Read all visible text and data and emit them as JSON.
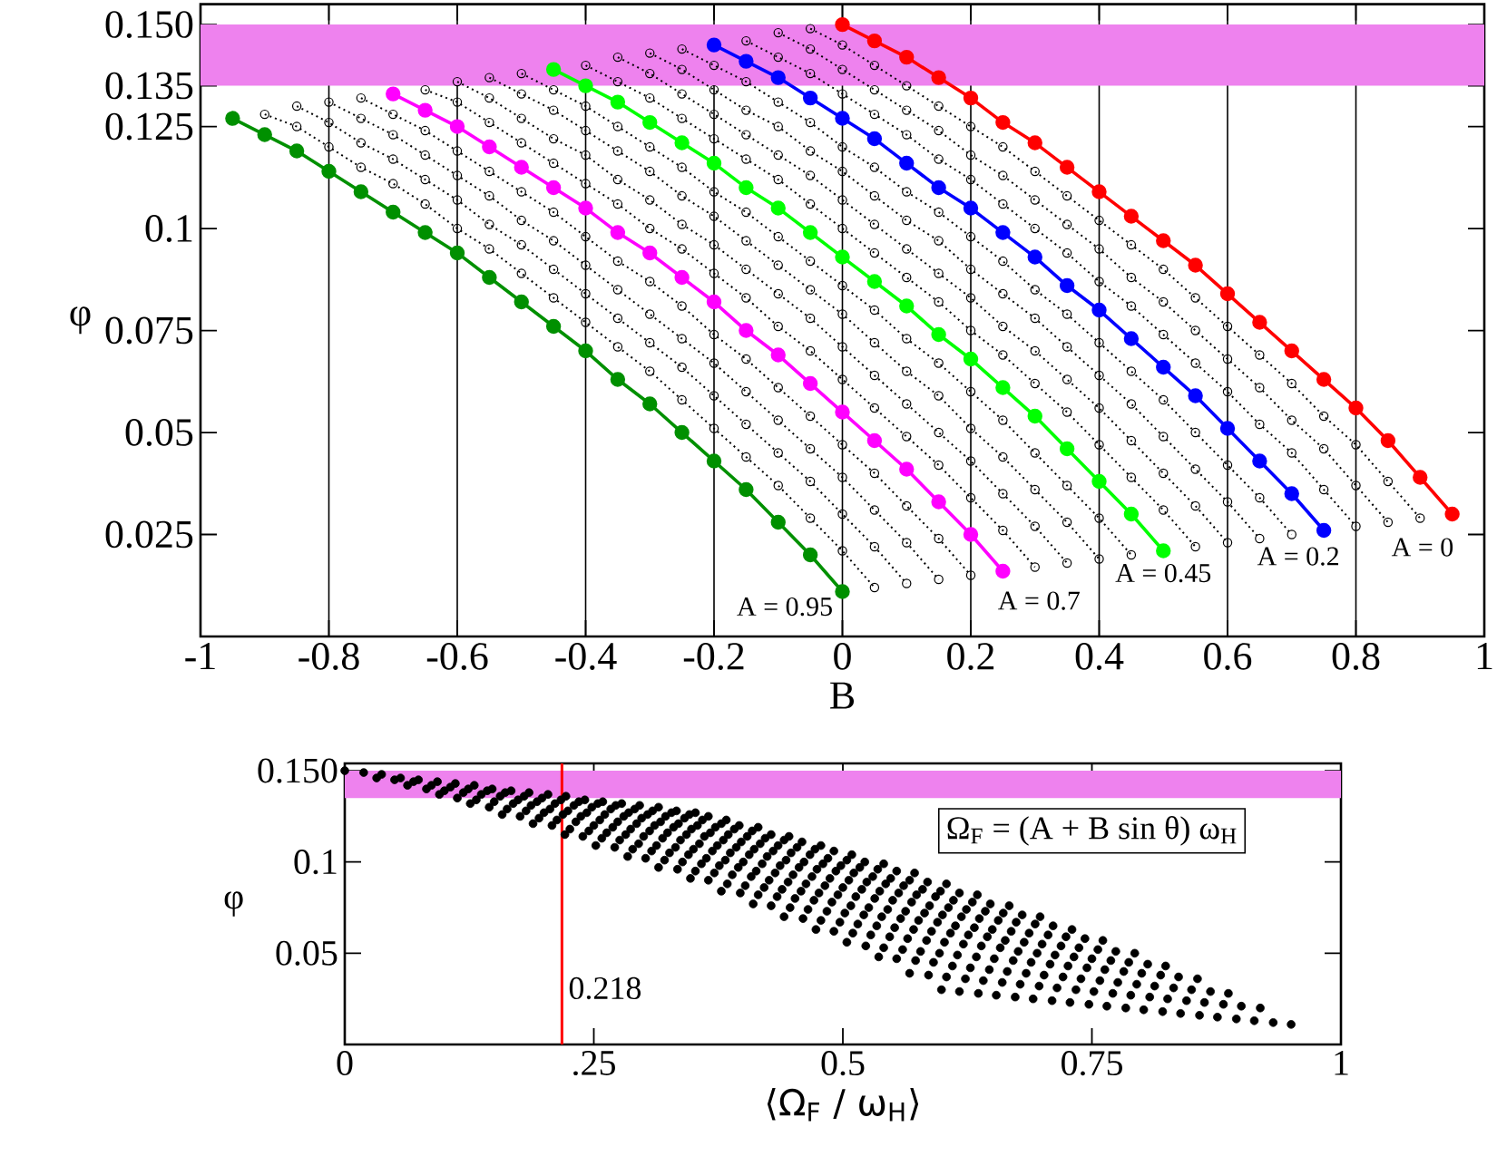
{
  "chart_data": [
    {
      "type": "line",
      "xlabel": "B",
      "ylabel": "φ",
      "xlim": [
        -1,
        1
      ],
      "ylim": [
        0,
        0.155
      ],
      "xticks": [
        -1,
        -0.8,
        -0.6,
        -0.4,
        -0.2,
        0,
        0.2,
        0.4,
        0.6,
        0.8,
        1
      ],
      "yticks": [
        0.025,
        0.05,
        0.075,
        0.1,
        0.125,
        0.135,
        {
          "value": 0.15,
          "label": "0.150"
        }
      ],
      "grid": "x",
      "marker": "circle",
      "bands": [
        {
          "axis": "y",
          "from": 0.135,
          "to": 0.15,
          "color": "#ee82ee"
        }
      ],
      "annotations": [
        {
          "text": "A = 0.95",
          "x": 0,
          "y": 0.011
        },
        {
          "text": "A = 0.7",
          "x": 0.25,
          "y": 0.016
        },
        {
          "text": "A = 0.45",
          "x": 0.5,
          "y": 0.021
        },
        {
          "text": "A = 0.2",
          "x": 0.75,
          "y": 0.026
        },
        {
          "text": "A = 0",
          "x": 0.95,
          "y": 0.03
        }
      ],
      "series": [
        {
          "color": "#ff0000",
          "line_style": "solid",
          "x": [
            0,
            0.05,
            0.1,
            0.15,
            0.2,
            0.25,
            0.3,
            0.35,
            0.4,
            0.45,
            0.5,
            0.55,
            0.6,
            0.65,
            0.7,
            0.75,
            0.8,
            0.85,
            0.9,
            0.95
          ],
          "values": [
            0.15,
            0.146,
            0.142,
            0.137,
            0.132,
            0.126,
            0.121,
            0.115,
            0.109,
            0.103,
            0.097,
            0.091,
            0.084,
            0.077,
            0.07,
            0.063,
            0.056,
            0.048,
            0.039,
            0.03
          ]
        },
        {
          "color": "#000000",
          "line_style": "dotted",
          "x": [
            -0.05,
            0,
            0.05,
            0.1,
            0.15,
            0.2,
            0.25,
            0.3,
            0.35,
            0.4,
            0.45,
            0.5,
            0.55,
            0.6,
            0.65,
            0.7,
            0.75,
            0.8,
            0.85,
            0.9
          ],
          "values": [
            0.149,
            0.145,
            0.14,
            0.135,
            0.13,
            0.125,
            0.12,
            0.114,
            0.108,
            0.102,
            0.096,
            0.09,
            0.083,
            0.076,
            0.069,
            0.062,
            0.054,
            0.047,
            0.038,
            0.029
          ]
        },
        {
          "color": "#000000",
          "line_style": "dotted",
          "x": [
            -0.1,
            -0.05,
            0,
            0.05,
            0.1,
            0.15,
            0.2,
            0.25,
            0.3,
            0.35,
            0.4,
            0.45,
            0.5,
            0.55,
            0.6,
            0.65,
            0.7,
            0.75,
            0.8,
            0.85
          ],
          "values": [
            0.148,
            0.144,
            0.139,
            0.134,
            0.129,
            0.124,
            0.118,
            0.113,
            0.107,
            0.101,
            0.095,
            0.088,
            0.082,
            0.075,
            0.068,
            0.061,
            0.053,
            0.046,
            0.037,
            0.028
          ]
        },
        {
          "color": "#000000",
          "line_style": "dotted",
          "x": [
            -0.15,
            -0.1,
            -0.05,
            0,
            0.05,
            0.1,
            0.15,
            0.2,
            0.25,
            0.3,
            0.35,
            0.4,
            0.45,
            0.5,
            0.55,
            0.6,
            0.65,
            0.7,
            0.75,
            0.8
          ],
          "values": [
            0.146,
            0.142,
            0.138,
            0.133,
            0.128,
            0.123,
            0.117,
            0.112,
            0.106,
            0.1,
            0.094,
            0.087,
            0.081,
            0.074,
            0.067,
            0.06,
            0.052,
            0.045,
            0.036,
            0.027
          ]
        },
        {
          "color": "#0000ff",
          "line_style": "solid",
          "x": [
            -0.2,
            -0.15,
            -0.1,
            -0.05,
            0,
            0.05,
            0.1,
            0.15,
            0.2,
            0.25,
            0.3,
            0.35,
            0.4,
            0.45,
            0.5,
            0.55,
            0.6,
            0.65,
            0.7,
            0.75
          ],
          "values": [
            0.145,
            0.141,
            0.137,
            0.132,
            0.127,
            0.122,
            0.116,
            0.11,
            0.105,
            0.099,
            0.093,
            0.086,
            0.08,
            0.073,
            0.066,
            0.059,
            0.051,
            0.043,
            0.035,
            0.026
          ]
        },
        {
          "color": "#000000",
          "line_style": "dotted",
          "x": [
            -0.25,
            -0.2,
            -0.15,
            -0.1,
            -0.05,
            0,
            0.05,
            0.1,
            0.15,
            0.2,
            0.25,
            0.3,
            0.35,
            0.4,
            0.45,
            0.5,
            0.55,
            0.6,
            0.65,
            0.7
          ],
          "values": [
            0.144,
            0.14,
            0.136,
            0.131,
            0.126,
            0.12,
            0.115,
            0.109,
            0.104,
            0.098,
            0.092,
            0.085,
            0.079,
            0.072,
            0.065,
            0.058,
            0.05,
            0.042,
            0.034,
            0.025
          ]
        },
        {
          "color": "#000000",
          "line_style": "dotted",
          "x": [
            -0.3,
            -0.25,
            -0.2,
            -0.15,
            -0.1,
            -0.05,
            0,
            0.05,
            0.1,
            0.15,
            0.2,
            0.25,
            0.3,
            0.35,
            0.4,
            0.45,
            0.5,
            0.55,
            0.6,
            0.65
          ],
          "values": [
            0.143,
            0.139,
            0.134,
            0.129,
            0.125,
            0.119,
            0.114,
            0.108,
            0.102,
            0.097,
            0.09,
            0.084,
            0.078,
            0.071,
            0.064,
            0.057,
            0.049,
            0.041,
            0.033,
            0.024
          ]
        },
        {
          "color": "#000000",
          "line_style": "dotted",
          "x": [
            -0.35,
            -0.3,
            -0.25,
            -0.2,
            -0.15,
            -0.1,
            -0.05,
            0,
            0.05,
            0.1,
            0.15,
            0.2,
            0.25,
            0.3,
            0.35,
            0.4,
            0.45,
            0.5,
            0.55,
            0.6
          ],
          "values": [
            0.142,
            0.138,
            0.133,
            0.128,
            0.123,
            0.118,
            0.113,
            0.107,
            0.101,
            0.095,
            0.089,
            0.083,
            0.076,
            0.07,
            0.063,
            0.056,
            0.048,
            0.04,
            0.032,
            0.023
          ]
        },
        {
          "color": "#000000",
          "line_style": "dotted",
          "x": [
            -0.4,
            -0.35,
            -0.3,
            -0.25,
            -0.2,
            -0.15,
            -0.1,
            -0.05,
            0,
            0.05,
            0.1,
            0.15,
            0.2,
            0.25,
            0.3,
            0.35,
            0.4,
            0.45,
            0.5,
            0.55
          ],
          "values": [
            0.14,
            0.136,
            0.132,
            0.127,
            0.122,
            0.117,
            0.112,
            0.106,
            0.1,
            0.094,
            0.088,
            0.082,
            0.075,
            0.069,
            0.062,
            0.055,
            0.047,
            0.039,
            0.031,
            0.022
          ]
        },
        {
          "color": "#00ff00",
          "line_style": "solid",
          "x": [
            -0.45,
            -0.4,
            -0.35,
            -0.3,
            -0.25,
            -0.2,
            -0.15,
            -0.1,
            -0.05,
            0,
            0.05,
            0.1,
            0.15,
            0.2,
            0.25,
            0.3,
            0.35,
            0.4,
            0.45,
            0.5
          ],
          "values": [
            0.139,
            0.135,
            0.131,
            0.126,
            0.121,
            0.116,
            0.11,
            0.105,
            0.099,
            0.093,
            0.087,
            0.081,
            0.074,
            0.068,
            0.061,
            0.054,
            0.046,
            0.038,
            0.03,
            0.021
          ]
        },
        {
          "color": "#000000",
          "line_style": "dotted",
          "x": [
            -0.5,
            -0.45,
            -0.4,
            -0.35,
            -0.3,
            -0.25,
            -0.2,
            -0.15,
            -0.1,
            -0.05,
            0,
            0.05,
            0.1,
            0.15,
            0.2,
            0.25,
            0.3,
            0.35,
            0.4,
            0.45
          ],
          "values": [
            0.138,
            0.134,
            0.13,
            0.125,
            0.12,
            0.115,
            0.109,
            0.104,
            0.098,
            0.092,
            0.086,
            0.08,
            0.073,
            0.067,
            0.06,
            0.053,
            0.045,
            0.037,
            0.029,
            0.02
          ]
        },
        {
          "color": "#000000",
          "line_style": "dotted",
          "x": [
            -0.55,
            -0.5,
            -0.45,
            -0.4,
            -0.35,
            -0.3,
            -0.25,
            -0.2,
            -0.15,
            -0.1,
            -0.05,
            0,
            0.05,
            0.1,
            0.15,
            0.2,
            0.25,
            0.3,
            0.35,
            0.4
          ],
          "values": [
            0.137,
            0.133,
            0.129,
            0.124,
            0.119,
            0.114,
            0.108,
            0.103,
            0.097,
            0.091,
            0.085,
            0.079,
            0.072,
            0.065,
            0.059,
            0.051,
            0.044,
            0.036,
            0.028,
            0.019
          ]
        },
        {
          "color": "#000000",
          "line_style": "dotted",
          "x": [
            -0.6,
            -0.55,
            -0.5,
            -0.45,
            -0.4,
            -0.35,
            -0.3,
            -0.25,
            -0.2,
            -0.15,
            -0.1,
            -0.05,
            0,
            0.05,
            0.1,
            0.15,
            0.2,
            0.25,
            0.3,
            0.35
          ],
          "values": [
            0.136,
            0.132,
            0.127,
            0.122,
            0.118,
            0.112,
            0.107,
            0.101,
            0.096,
            0.09,
            0.084,
            0.078,
            0.071,
            0.064,
            0.057,
            0.05,
            0.043,
            0.035,
            0.027,
            0.018
          ]
        },
        {
          "color": "#000000",
          "line_style": "dotted",
          "x": [
            -0.65,
            -0.6,
            -0.55,
            -0.5,
            -0.45,
            -0.4,
            -0.35,
            -0.3,
            -0.25,
            -0.2,
            -0.15,
            -0.1,
            -0.05,
            0,
            0.05,
            0.1,
            0.15,
            0.2,
            0.25,
            0.3
          ],
          "values": [
            0.134,
            0.131,
            0.126,
            0.121,
            0.116,
            0.111,
            0.106,
            0.1,
            0.095,
            0.089,
            0.083,
            0.076,
            0.07,
            0.063,
            0.056,
            0.049,
            0.042,
            0.034,
            0.026,
            0.017
          ]
        },
        {
          "color": "#ff00ff",
          "line_style": "solid",
          "x": [
            -0.7,
            -0.65,
            -0.6,
            -0.55,
            -0.5,
            -0.45,
            -0.4,
            -0.35,
            -0.3,
            -0.25,
            -0.2,
            -0.15,
            -0.1,
            -0.05,
            0,
            0.05,
            0.1,
            0.15,
            0.2,
            0.25
          ],
          "values": [
            0.133,
            0.129,
            0.125,
            0.12,
            0.115,
            0.11,
            0.105,
            0.099,
            0.094,
            0.088,
            0.082,
            0.075,
            0.069,
            0.062,
            0.055,
            0.048,
            0.041,
            0.033,
            0.025,
            0.016
          ]
        },
        {
          "color": "#000000",
          "line_style": "dotted",
          "x": [
            -0.75,
            -0.7,
            -0.65,
            -0.6,
            -0.55,
            -0.5,
            -0.45,
            -0.4,
            -0.35,
            -0.3,
            -0.25,
            -0.2,
            -0.15,
            -0.1,
            -0.05,
            0,
            0.05,
            0.1,
            0.15,
            0.2
          ],
          "values": [
            0.132,
            0.128,
            0.124,
            0.119,
            0.114,
            0.109,
            0.104,
            0.098,
            0.092,
            0.087,
            0.081,
            0.074,
            0.068,
            0.061,
            0.054,
            0.047,
            0.04,
            0.032,
            0.024,
            0.015
          ]
        },
        {
          "color": "#000000",
          "line_style": "dotted",
          "x": [
            -0.8,
            -0.75,
            -0.7,
            -0.65,
            -0.6,
            -0.55,
            -0.5,
            -0.45,
            -0.4,
            -0.35,
            -0.3,
            -0.25,
            -0.2,
            -0.15,
            -0.1,
            -0.05,
            0,
            0.05,
            0.1,
            0.15
          ],
          "values": [
            0.131,
            0.127,
            0.123,
            0.118,
            0.113,
            0.108,
            0.102,
            0.097,
            0.091,
            0.085,
            0.079,
            0.073,
            0.067,
            0.06,
            0.053,
            0.046,
            0.039,
            0.031,
            0.023,
            0.014
          ]
        },
        {
          "color": "#000000",
          "line_style": "dotted",
          "x": [
            -0.85,
            -0.8,
            -0.75,
            -0.7,
            -0.65,
            -0.6,
            -0.55,
            -0.5,
            -0.45,
            -0.4,
            -0.35,
            -0.3,
            -0.25,
            -0.2,
            -0.15,
            -0.1,
            -0.05,
            0,
            0.05,
            0.1
          ],
          "values": [
            0.13,
            0.126,
            0.121,
            0.117,
            0.112,
            0.107,
            0.101,
            0.096,
            0.09,
            0.084,
            0.078,
            0.072,
            0.066,
            0.059,
            0.052,
            0.045,
            0.038,
            0.03,
            0.022,
            0.013
          ]
        },
        {
          "color": "#000000",
          "line_style": "dotted",
          "x": [
            -0.9,
            -0.85,
            -0.8,
            -0.75,
            -0.7,
            -0.65,
            -0.6,
            -0.55,
            -0.5,
            -0.45,
            -0.4,
            -0.35,
            -0.3,
            -0.25,
            -0.2,
            -0.15,
            -0.1,
            -0.05,
            0,
            0.05
          ],
          "values": [
            0.128,
            0.125,
            0.12,
            0.115,
            0.111,
            0.106,
            0.1,
            0.095,
            0.089,
            0.083,
            0.077,
            0.071,
            0.065,
            0.058,
            0.051,
            0.044,
            0.037,
            0.029,
            0.021,
            0.012
          ]
        },
        {
          "color": "#009000",
          "line_style": "solid",
          "x": [
            -0.95,
            -0.9,
            -0.85,
            -0.8,
            -0.75,
            -0.7,
            -0.65,
            -0.6,
            -0.55,
            -0.5,
            -0.45,
            -0.4,
            -0.35,
            -0.3,
            -0.25,
            -0.2,
            -0.15,
            -0.1,
            -0.05,
            0
          ],
          "values": [
            0.127,
            0.123,
            0.119,
            0.114,
            0.109,
            0.104,
            0.099,
            0.094,
            0.088,
            0.082,
            0.076,
            0.07,
            0.063,
            0.057,
            0.05,
            0.043,
            0.036,
            0.028,
            0.02,
            0.011
          ]
        }
      ]
    },
    {
      "type": "scatter",
      "xlabel": "⟨Ω$_{F}$ / ω$_{H}$⟩",
      "ylabel": "φ",
      "xlim": [
        0,
        1
      ],
      "ylim": [
        0,
        0.154
      ],
      "xticks": [
        0,
        {
          "value": 0.25,
          "label": ".25"
        },
        0.5,
        0.75,
        1
      ],
      "yticks": [
        0.05,
        0.1,
        {
          "value": 0.15,
          "label": "0.150"
        }
      ],
      "marker": "circle",
      "bands": [
        {
          "axis": "y",
          "from": 0.135,
          "to": 0.15,
          "color": "#ee82ee"
        }
      ],
      "ref_lines": [
        {
          "axis": "x",
          "value": 0.218,
          "label": "0.218",
          "color": "#ff0000"
        }
      ],
      "annotations": [
        "Ω$_{F}$ = (A + B sin θ) ω$_{H}$"
      ],
      "series": [
        {
          "color": "#000000",
          "x": [
            0,
            0.032,
            0.063,
            0.095,
            0.126,
            0.158,
            0.189,
            0.221,
            0.252,
            0.284,
            0.315,
            0.347,
            0.378,
            0.41,
            0.441,
            0.473,
            0.504,
            0.536,
            0.567,
            0.599
          ],
          "values": [
            0.15,
            0.146,
            0.142,
            0.137,
            0.132,
            0.126,
            0.121,
            0.115,
            0.109,
            0.103,
            0.097,
            0.091,
            0.084,
            0.077,
            0.07,
            0.063,
            0.056,
            0.048,
            0.039,
            0.03
          ]
        },
        {
          "color": "#000000",
          "x": [
            0.019,
            0.05,
            0.082,
            0.113,
            0.145,
            0.176,
            0.208,
            0.239,
            0.271,
            0.302,
            0.334,
            0.365,
            0.397,
            0.428,
            0.46,
            0.491,
            0.523,
            0.554,
            0.586,
            0.617
          ],
          "values": [
            0.149,
            0.145,
            0.14,
            0.135,
            0.13,
            0.125,
            0.12,
            0.114,
            0.108,
            0.102,
            0.096,
            0.09,
            0.083,
            0.076,
            0.069,
            0.062,
            0.054,
            0.047,
            0.038,
            0.029
          ]
        },
        {
          "color": "#000000",
          "x": [
            0.037,
            0.069,
            0.1,
            0.132,
            0.163,
            0.195,
            0.226,
            0.258,
            0.289,
            0.321,
            0.352,
            0.384,
            0.415,
            0.447,
            0.478,
            0.51,
            0.541,
            0.573,
            0.604,
            0.636
          ],
          "values": [
            0.148,
            0.144,
            0.139,
            0.134,
            0.129,
            0.124,
            0.118,
            0.113,
            0.107,
            0.101,
            0.095,
            0.088,
            0.082,
            0.075,
            0.068,
            0.061,
            0.053,
            0.046,
            0.037,
            0.028
          ]
        },
        {
          "color": "#000000",
          "x": [
            0.056,
            0.087,
            0.119,
            0.15,
            0.182,
            0.213,
            0.245,
            0.276,
            0.308,
            0.339,
            0.371,
            0.402,
            0.434,
            0.465,
            0.497,
            0.528,
            0.56,
            0.591,
            0.623,
            0.654
          ],
          "values": [
            0.146,
            0.142,
            0.138,
            0.133,
            0.128,
            0.123,
            0.117,
            0.112,
            0.106,
            0.1,
            0.094,
            0.087,
            0.081,
            0.074,
            0.067,
            0.06,
            0.052,
            0.045,
            0.036,
            0.027
          ]
        },
        {
          "color": "#000000",
          "x": [
            0.074,
            0.106,
            0.137,
            0.169,
            0.2,
            0.232,
            0.263,
            0.295,
            0.326,
            0.358,
            0.389,
            0.421,
            0.452,
            0.484,
            0.515,
            0.547,
            0.578,
            0.61,
            0.641,
            0.673
          ],
          "values": [
            0.145,
            0.141,
            0.137,
            0.132,
            0.127,
            0.122,
            0.116,
            0.11,
            0.105,
            0.099,
            0.093,
            0.086,
            0.08,
            0.073,
            0.066,
            0.059,
            0.051,
            0.043,
            0.035,
            0.026
          ]
        },
        {
          "color": "#000000",
          "x": [
            0.093,
            0.124,
            0.156,
            0.187,
            0.219,
            0.25,
            0.282,
            0.313,
            0.345,
            0.376,
            0.408,
            0.439,
            0.471,
            0.502,
            0.534,
            0.565,
            0.597,
            0.628,
            0.66,
            0.691
          ],
          "values": [
            0.144,
            0.14,
            0.136,
            0.131,
            0.126,
            0.12,
            0.115,
            0.109,
            0.104,
            0.098,
            0.092,
            0.085,
            0.079,
            0.072,
            0.065,
            0.058,
            0.05,
            0.042,
            0.034,
            0.025
          ]
        },
        {
          "color": "#000000",
          "x": [
            0.111,
            0.143,
            0.174,
            0.206,
            0.237,
            0.269,
            0.3,
            0.332,
            0.363,
            0.395,
            0.426,
            0.458,
            0.489,
            0.521,
            0.552,
            0.584,
            0.615,
            0.647,
            0.678,
            0.71
          ],
          "values": [
            0.143,
            0.139,
            0.134,
            0.129,
            0.125,
            0.119,
            0.114,
            0.108,
            0.102,
            0.097,
            0.09,
            0.084,
            0.078,
            0.071,
            0.064,
            0.057,
            0.049,
            0.041,
            0.033,
            0.024
          ]
        },
        {
          "color": "#000000",
          "x": [
            0.13,
            0.161,
            0.193,
            0.224,
            0.256,
            0.287,
            0.319,
            0.35,
            0.382,
            0.413,
            0.445,
            0.476,
            0.508,
            0.539,
            0.571,
            0.602,
            0.634,
            0.665,
            0.697,
            0.728
          ],
          "values": [
            0.142,
            0.138,
            0.133,
            0.128,
            0.123,
            0.118,
            0.113,
            0.107,
            0.101,
            0.095,
            0.089,
            0.083,
            0.076,
            0.07,
            0.063,
            0.056,
            0.048,
            0.04,
            0.032,
            0.023
          ]
        },
        {
          "color": "#000000",
          "x": [
            0.148,
            0.18,
            0.211,
            0.243,
            0.274,
            0.306,
            0.337,
            0.369,
            0.4,
            0.432,
            0.463,
            0.495,
            0.526,
            0.558,
            0.589,
            0.621,
            0.652,
            0.684,
            0.715,
            0.747
          ],
          "values": [
            0.14,
            0.136,
            0.132,
            0.127,
            0.122,
            0.117,
            0.112,
            0.106,
            0.1,
            0.094,
            0.088,
            0.082,
            0.075,
            0.069,
            0.062,
            0.055,
            0.047,
            0.039,
            0.031,
            0.022
          ]
        },
        {
          "color": "#000000",
          "x": [
            0.167,
            0.198,
            0.23,
            0.261,
            0.293,
            0.324,
            0.356,
            0.387,
            0.419,
            0.45,
            0.482,
            0.513,
            0.545,
            0.576,
            0.608,
            0.639,
            0.671,
            0.702,
            0.734,
            0.765
          ],
          "values": [
            0.139,
            0.135,
            0.131,
            0.126,
            0.121,
            0.116,
            0.11,
            0.105,
            0.099,
            0.093,
            0.087,
            0.081,
            0.074,
            0.068,
            0.061,
            0.054,
            0.046,
            0.038,
            0.03,
            0.021
          ]
        },
        {
          "color": "#000000",
          "x": [
            0.185,
            0.217,
            0.248,
            0.28,
            0.311,
            0.343,
            0.374,
            0.406,
            0.437,
            0.469,
            0.5,
            0.532,
            0.563,
            0.595,
            0.626,
            0.658,
            0.689,
            0.721,
            0.752,
            0.784
          ],
          "values": [
            0.138,
            0.134,
            0.13,
            0.125,
            0.12,
            0.115,
            0.109,
            0.104,
            0.098,
            0.092,
            0.086,
            0.08,
            0.073,
            0.067,
            0.06,
            0.053,
            0.045,
            0.037,
            0.029,
            0.02
          ]
        },
        {
          "color": "#000000",
          "x": [
            0.204,
            0.235,
            0.267,
            0.298,
            0.33,
            0.361,
            0.393,
            0.424,
            0.456,
            0.487,
            0.519,
            0.55,
            0.582,
            0.613,
            0.645,
            0.676,
            0.708,
            0.739,
            0.771,
            0.802
          ],
          "values": [
            0.137,
            0.133,
            0.129,
            0.124,
            0.119,
            0.114,
            0.108,
            0.103,
            0.097,
            0.091,
            0.085,
            0.079,
            0.072,
            0.065,
            0.059,
            0.051,
            0.044,
            0.036,
            0.028,
            0.019
          ]
        },
        {
          "color": "#000000",
          "x": [
            0.222,
            0.254,
            0.285,
            0.317,
            0.348,
            0.38,
            0.411,
            0.443,
            0.474,
            0.506,
            0.537,
            0.569,
            0.6,
            0.632,
            0.663,
            0.695,
            0.726,
            0.758,
            0.789,
            0.821
          ],
          "values": [
            0.136,
            0.132,
            0.127,
            0.122,
            0.118,
            0.112,
            0.107,
            0.101,
            0.096,
            0.09,
            0.084,
            0.078,
            0.071,
            0.064,
            0.057,
            0.05,
            0.043,
            0.035,
            0.027,
            0.018
          ]
        },
        {
          "color": "#000000",
          "x": [
            0.241,
            0.272,
            0.304,
            0.335,
            0.367,
            0.398,
            0.43,
            0.461,
            0.493,
            0.524,
            0.556,
            0.587,
            0.619,
            0.65,
            0.682,
            0.713,
            0.745,
            0.776,
            0.808,
            0.839
          ],
          "values": [
            0.134,
            0.131,
            0.126,
            0.121,
            0.116,
            0.111,
            0.106,
            0.1,
            0.095,
            0.089,
            0.083,
            0.076,
            0.07,
            0.063,
            0.056,
            0.049,
            0.042,
            0.034,
            0.026,
            0.017
          ]
        },
        {
          "color": "#000000",
          "x": [
            0.259,
            0.291,
            0.322,
            0.354,
            0.385,
            0.417,
            0.448,
            0.48,
            0.511,
            0.543,
            0.574,
            0.606,
            0.637,
            0.669,
            0.7,
            0.732,
            0.763,
            0.795,
            0.826,
            0.858
          ],
          "values": [
            0.133,
            0.129,
            0.125,
            0.12,
            0.115,
            0.11,
            0.105,
            0.099,
            0.094,
            0.088,
            0.082,
            0.075,
            0.069,
            0.062,
            0.055,
            0.048,
            0.041,
            0.033,
            0.025,
            0.016
          ]
        },
        {
          "color": "#000000",
          "x": [
            0.278,
            0.309,
            0.341,
            0.372,
            0.404,
            0.435,
            0.467,
            0.498,
            0.53,
            0.561,
            0.593,
            0.624,
            0.656,
            0.687,
            0.719,
            0.75,
            0.782,
            0.813,
            0.845,
            0.876
          ],
          "values": [
            0.132,
            0.128,
            0.124,
            0.119,
            0.114,
            0.109,
            0.104,
            0.098,
            0.092,
            0.087,
            0.081,
            0.074,
            0.068,
            0.061,
            0.054,
            0.047,
            0.04,
            0.032,
            0.024,
            0.015
          ]
        },
        {
          "color": "#000000",
          "x": [
            0.296,
            0.328,
            0.359,
            0.391,
            0.422,
            0.454,
            0.485,
            0.517,
            0.548,
            0.58,
            0.611,
            0.643,
            0.674,
            0.706,
            0.737,
            0.769,
            0.8,
            0.832,
            0.863,
            0.895
          ],
          "values": [
            0.131,
            0.127,
            0.123,
            0.118,
            0.113,
            0.108,
            0.102,
            0.097,
            0.091,
            0.085,
            0.079,
            0.073,
            0.067,
            0.06,
            0.053,
            0.046,
            0.039,
            0.031,
            0.023,
            0.014
          ]
        },
        {
          "color": "#000000",
          "x": [
            0.315,
            0.346,
            0.378,
            0.409,
            0.441,
            0.472,
            0.504,
            0.535,
            0.567,
            0.598,
            0.63,
            0.661,
            0.693,
            0.724,
            0.756,
            0.787,
            0.819,
            0.85,
            0.882,
            0.913
          ],
          "values": [
            0.13,
            0.126,
            0.121,
            0.117,
            0.112,
            0.107,
            0.101,
            0.096,
            0.09,
            0.084,
            0.078,
            0.072,
            0.066,
            0.059,
            0.052,
            0.045,
            0.038,
            0.03,
            0.022,
            0.013
          ]
        },
        {
          "color": "#000000",
          "x": [
            0.333,
            0.365,
            0.396,
            0.428,
            0.459,
            0.491,
            0.522,
            0.554,
            0.585,
            0.617,
            0.648,
            0.68,
            0.711,
            0.743,
            0.774,
            0.806,
            0.837,
            0.869,
            0.9,
            0.932
          ],
          "values": [
            0.128,
            0.125,
            0.12,
            0.115,
            0.111,
            0.106,
            0.1,
            0.095,
            0.089,
            0.083,
            0.077,
            0.071,
            0.065,
            0.058,
            0.051,
            0.044,
            0.037,
            0.029,
            0.021,
            0.012
          ]
        },
        {
          "color": "#000000",
          "x": [
            0.352,
            0.383,
            0.415,
            0.446,
            0.478,
            0.509,
            0.541,
            0.572,
            0.604,
            0.635,
            0.667,
            0.698,
            0.73,
            0.761,
            0.793,
            0.824,
            0.856,
            0.887,
            0.919,
            0.95
          ],
          "values": [
            0.127,
            0.123,
            0.119,
            0.114,
            0.109,
            0.104,
            0.099,
            0.094,
            0.088,
            0.082,
            0.076,
            0.07,
            0.063,
            0.057,
            0.05,
            0.043,
            0.036,
            0.028,
            0.02,
            0.011
          ]
        }
      ]
    }
  ]
}
